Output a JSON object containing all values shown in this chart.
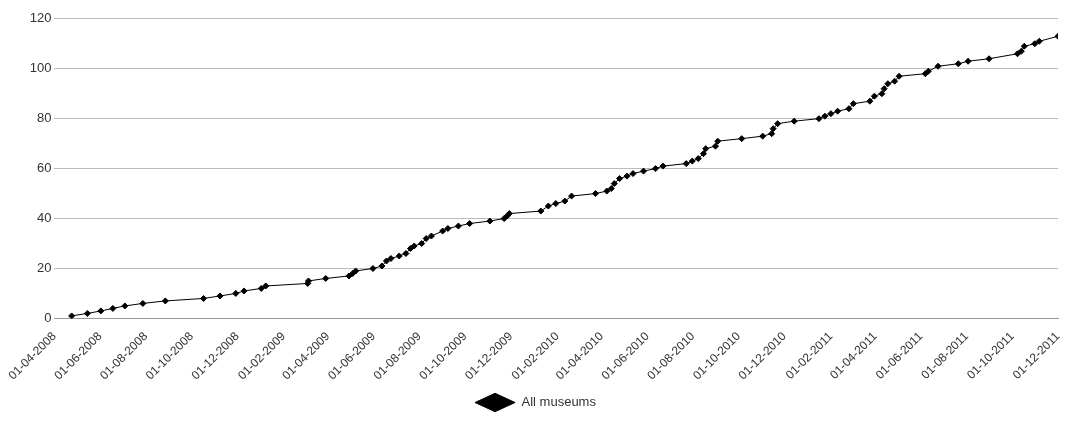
{
  "chart_data": {
    "type": "line",
    "x": [
      "2008-04-24",
      "2008-05-15",
      "2008-06-02",
      "2008-06-18",
      "2008-07-04",
      "2008-07-28",
      "2008-08-27",
      "2008-10-17",
      "2008-11-08",
      "2008-11-29",
      "2008-12-10",
      "2009-01-02",
      "2009-01-08",
      "2009-03-05",
      "2009-03-06",
      "2009-03-29",
      "2009-04-29",
      "2009-05-04",
      "2009-05-08",
      "2009-05-31",
      "2009-06-12",
      "2009-06-18",
      "2009-06-24",
      "2009-07-05",
      "2009-07-14",
      "2009-07-20",
      "2009-07-25",
      "2009-08-04",
      "2009-08-10",
      "2009-08-17",
      "2009-09-01",
      "2009-09-08",
      "2009-09-22",
      "2009-10-07",
      "2009-11-03",
      "2009-11-22",
      "2009-11-26",
      "2009-11-29",
      "2010-01-10",
      "2010-01-20",
      "2010-01-30",
      "2010-02-11",
      "2010-02-20",
      "2010-03-24",
      "2010-04-08",
      "2010-04-14",
      "2010-04-18",
      "2010-04-25",
      "2010-05-05",
      "2010-05-13",
      "2010-05-27",
      "2010-06-12",
      "2010-06-22",
      "2010-07-23",
      "2010-07-31",
      "2010-08-08",
      "2010-08-15",
      "2010-08-18",
      "2010-08-31",
      "2010-09-03",
      "2010-10-05",
      "2010-11-02",
      "2010-11-14",
      "2010-11-16",
      "2010-11-22",
      "2010-12-14",
      "2011-01-16",
      "2011-01-24",
      "2011-02-01",
      "2011-02-10",
      "2011-02-25",
      "2011-03-03",
      "2011-03-25",
      "2011-03-31",
      "2011-04-10",
      "2011-04-13",
      "2011-04-18",
      "2011-04-27",
      "2011-05-03",
      "2011-06-07",
      "2011-06-11",
      "2011-06-24",
      "2011-07-21",
      "2011-08-03",
      "2011-08-31",
      "2011-10-08",
      "2011-10-13",
      "2011-10-17",
      "2011-10-31",
      "2011-11-06",
      "2011-12-01"
    ],
    "series": [
      {
        "name": "All museums",
        "color": "#000000",
        "values": [
          1,
          2,
          3,
          4,
          5,
          6,
          7,
          8,
          9,
          10,
          11,
          12,
          13,
          14,
          15,
          16,
          17,
          18,
          19,
          20,
          21,
          23,
          24,
          25,
          26,
          28,
          29,
          30,
          32,
          33,
          35,
          36,
          37,
          38,
          39,
          40,
          41,
          42,
          43,
          45,
          46,
          47,
          49,
          50,
          51,
          52,
          54,
          56,
          57,
          58,
          59,
          60,
          61,
          62,
          63,
          64,
          66,
          68,
          69,
          71,
          72,
          73,
          74,
          76,
          78,
          79,
          80,
          81,
          82,
          83,
          84,
          86,
          87,
          89,
          90,
          92,
          94,
          95,
          97,
          98,
          99,
          101,
          102,
          103,
          104,
          106,
          107,
          109,
          110,
          111,
          113
        ]
      }
    ],
    "xlim": [
      "2008-04-01",
      "2011-12-01"
    ],
    "xticks": [
      {
        "value": "2008-04-01",
        "label": "01-04-2008"
      },
      {
        "value": "2008-06-01",
        "label": "01-06-2008"
      },
      {
        "value": "2008-08-01",
        "label": "01-08-2008"
      },
      {
        "value": "2008-10-01",
        "label": "01-10-2008"
      },
      {
        "value": "2008-12-01",
        "label": "01-12-2008"
      },
      {
        "value": "2009-02-01",
        "label": "01-02-2009"
      },
      {
        "value": "2009-04-01",
        "label": "01-04-2009"
      },
      {
        "value": "2009-06-01",
        "label": "01-06-2009"
      },
      {
        "value": "2009-08-01",
        "label": "01-08-2009"
      },
      {
        "value": "2009-10-01",
        "label": "01-10-2009"
      },
      {
        "value": "2009-12-01",
        "label": "01-12-2009"
      },
      {
        "value": "2010-02-01",
        "label": "01-02-2010"
      },
      {
        "value": "2010-04-01",
        "label": "01-04-2010"
      },
      {
        "value": "2010-06-01",
        "label": "01-06-2010"
      },
      {
        "value": "2010-08-01",
        "label": "01-08-2010"
      },
      {
        "value": "2010-10-01",
        "label": "01-10-2010"
      },
      {
        "value": "2010-12-01",
        "label": "01-12-2010"
      },
      {
        "value": "2011-02-01",
        "label": "01-02-2011"
      },
      {
        "value": "2011-04-01",
        "label": "01-04-2011"
      },
      {
        "value": "2011-06-01",
        "label": "01-06-2011"
      },
      {
        "value": "2011-08-01",
        "label": "01-08-2011"
      },
      {
        "value": "2011-10-01",
        "label": "01-10-2011"
      },
      {
        "value": "2011-12-01",
        "label": "01-12-2011"
      }
    ],
    "ylim": [
      0,
      120
    ],
    "yticks": [
      0,
      20,
      40,
      60,
      80,
      100,
      120
    ],
    "grid": "y",
    "legend": "bottom",
    "marker": "diamond",
    "line_style": "solid"
  }
}
